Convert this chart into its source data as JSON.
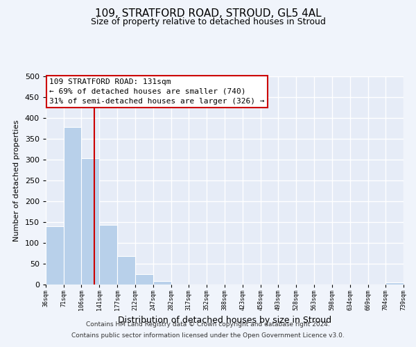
{
  "title_line1": "109, STRATFORD ROAD, STROUD, GL5 4AL",
  "title_line2": "Size of property relative to detached houses in Stroud",
  "xlabel": "Distribution of detached houses by size in Stroud",
  "ylabel": "Number of detached properties",
  "bar_edges": [
    36,
    71,
    106,
    141,
    177,
    212,
    247,
    282,
    317,
    352,
    388,
    423,
    458,
    493,
    528,
    563,
    598,
    634,
    669,
    704,
    739
  ],
  "bar_heights": [
    140,
    378,
    303,
    143,
    69,
    25,
    8,
    0,
    0,
    0,
    0,
    0,
    0,
    0,
    0,
    0,
    0,
    0,
    0,
    5
  ],
  "bar_color": "#b8d0ea",
  "property_line_x": 131,
  "property_line_color": "#cc0000",
  "annotation_text_line1": "109 STRATFORD ROAD: 131sqm",
  "annotation_text_line2": "← 69% of detached houses are smaller (740)",
  "annotation_text_line3": "31% of semi-detached houses are larger (326) →",
  "ylim": [
    0,
    500
  ],
  "tick_labels": [
    "36sqm",
    "71sqm",
    "106sqm",
    "141sqm",
    "177sqm",
    "212sqm",
    "247sqm",
    "282sqm",
    "317sqm",
    "352sqm",
    "388sqm",
    "423sqm",
    "458sqm",
    "493sqm",
    "528sqm",
    "563sqm",
    "598sqm",
    "634sqm",
    "669sqm",
    "704sqm",
    "739sqm"
  ],
  "tick_positions": [
    36,
    71,
    106,
    141,
    177,
    212,
    247,
    282,
    317,
    352,
    388,
    423,
    458,
    493,
    528,
    563,
    598,
    634,
    669,
    704,
    739
  ],
  "footer_line1": "Contains HM Land Registry data © Crown copyright and database right 2024.",
  "footer_line2": "Contains public sector information licensed under the Open Government Licence v3.0.",
  "background_color": "#f0f4fb",
  "plot_background_color": "#e6ecf7",
  "grid_color": "#ffffff",
  "yticks": [
    0,
    50,
    100,
    150,
    200,
    250,
    300,
    350,
    400,
    450,
    500
  ]
}
